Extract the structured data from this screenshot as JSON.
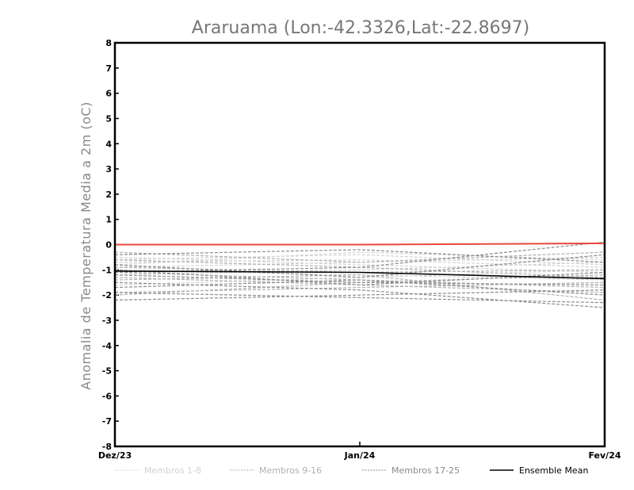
{
  "chart_data": {
    "type": "line",
    "title": "Araruama (Lon:-42.3326,Lat:-22.8697)",
    "xlabel": "",
    "ylabel": "Anomalia de Temperatura Media a 2m (oC)",
    "x": [
      "Dez/23",
      "Jan/24",
      "Fev/24"
    ],
    "ylim": [
      -8,
      8
    ],
    "yticks": [
      -8,
      -7,
      -6,
      -5,
      -4,
      -3,
      -2,
      -1,
      0,
      1,
      2,
      3,
      4,
      5,
      6,
      7,
      8
    ],
    "grid": false,
    "legend_position": "bottom",
    "legend": [
      {
        "label": "Membros 1-8",
        "color": "#d3d3d3",
        "style": "dashed"
      },
      {
        "label": "Membros 9-16",
        "color": "#b0b0b0",
        "style": "dashed"
      },
      {
        "label": "Membros 17-25",
        "color": "#8c8c8c",
        "style": "dashed"
      },
      {
        "label": "Ensemble Mean",
        "color": "#000000",
        "style": "solid"
      }
    ],
    "reference_line": {
      "y": [
        0.0,
        0.0,
        0.05
      ],
      "color": "#e8483b"
    },
    "series": [
      {
        "group": 0,
        "values": [
          -0.6,
          -0.4,
          -0.8
        ]
      },
      {
        "group": 0,
        "values": [
          -0.9,
          -0.7,
          -0.5
        ]
      },
      {
        "group": 0,
        "values": [
          -1.2,
          -1.0,
          -0.7
        ]
      },
      {
        "group": 0,
        "values": [
          -0.5,
          -0.8,
          -1.1
        ]
      },
      {
        "group": 0,
        "values": [
          -1.6,
          -1.3,
          -1.0
        ]
      },
      {
        "group": 0,
        "values": [
          -0.8,
          -0.3,
          -0.6
        ]
      },
      {
        "group": 0,
        "values": [
          -1.0,
          -1.2,
          -1.4
        ]
      },
      {
        "group": 0,
        "values": [
          -0.7,
          -0.6,
          -0.9
        ]
      },
      {
        "group": 1,
        "values": [
          -1.3,
          -1.6,
          -1.9
        ]
      },
      {
        "group": 1,
        "values": [
          -0.3,
          -0.7,
          -0.3
        ]
      },
      {
        "group": 1,
        "values": [
          -1.9,
          -1.7,
          -1.5
        ]
      },
      {
        "group": 1,
        "values": [
          -1.1,
          -1.4,
          -1.7
        ]
      },
      {
        "group": 1,
        "values": [
          -0.9,
          -1.1,
          -1.0
        ]
      },
      {
        "group": 1,
        "values": [
          -1.4,
          -1.2,
          -2.2
        ]
      },
      {
        "group": 1,
        "values": [
          -0.6,
          -0.9,
          -1.3
        ]
      },
      {
        "group": 1,
        "values": [
          -2.0,
          -1.5,
          -1.2
        ]
      },
      {
        "group": 2,
        "values": [
          -1.5,
          -1.8,
          -2.5
        ]
      },
      {
        "group": 2,
        "values": [
          -2.2,
          -2.0,
          -1.8
        ]
      },
      {
        "group": 2,
        "values": [
          -1.2,
          -1.5,
          -1.6
        ]
      },
      {
        "group": 2,
        "values": [
          -0.8,
          -1.3,
          -0.4
        ]
      },
      {
        "group": 2,
        "values": [
          -1.1,
          -0.9,
          0.1
        ]
      },
      {
        "group": 2,
        "values": [
          -1.7,
          -1.4,
          -2.0
        ]
      },
      {
        "group": 2,
        "values": [
          -0.4,
          -0.2,
          -0.7
        ]
      },
      {
        "group": 2,
        "values": [
          -1.9,
          -2.1,
          -2.3
        ]
      },
      {
        "group": 2,
        "values": [
          -1.0,
          -1.6,
          -1.1
        ]
      }
    ],
    "ensemble_mean": {
      "name": "Ensemble Mean",
      "values": [
        -1.05,
        -1.1,
        -1.35
      ]
    }
  }
}
